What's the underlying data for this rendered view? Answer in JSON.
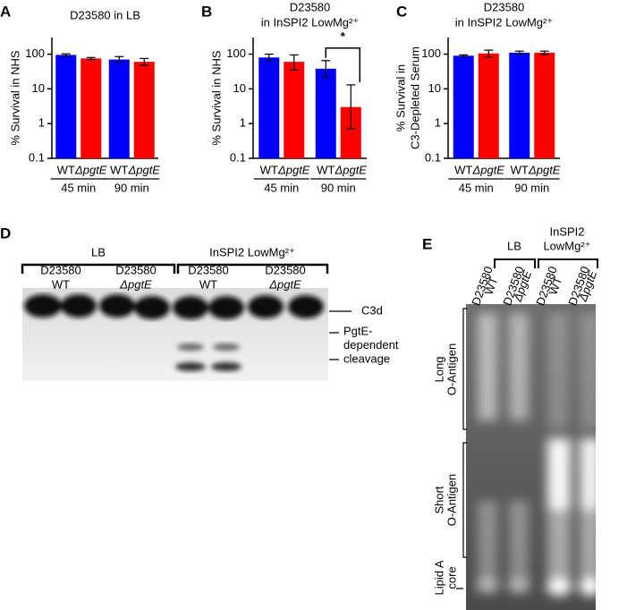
{
  "chart_data": [
    {
      "type": "bar",
      "panel_label": "A",
      "title": [
        "D23580 in LB"
      ],
      "y_label": [
        "% Survival in NHS"
      ],
      "log_y": true,
      "ylim": [
        0.1,
        300
      ],
      "yticks": [
        0.1,
        1,
        10,
        100
      ],
      "categories": [
        "45 min",
        "90 min"
      ],
      "series": [
        {
          "name": "WT",
          "color": "#0000ff",
          "values": [
            95,
            70
          ],
          "errors": [
            [
              88,
              102
            ],
            [
              58,
              85
            ]
          ]
        },
        {
          "name": "ΔpgtE",
          "color": "#ff0000",
          "values": [
            75,
            60
          ],
          "errors": [
            [
              70,
              80
            ],
            [
              48,
              75
            ]
          ]
        }
      ]
    },
    {
      "type": "bar",
      "panel_label": "B",
      "title": [
        "D23580",
        "in InSPI2 LowMg²⁺"
      ],
      "y_label": [
        "% Survival in NHS"
      ],
      "log_y": true,
      "ylim": [
        0.1,
        300
      ],
      "yticks": [
        0.1,
        1,
        10,
        100
      ],
      "categories": [
        "45 min",
        "90 min"
      ],
      "series": [
        {
          "name": "WT",
          "color": "#0000ff",
          "values": [
            80,
            38
          ],
          "errors": [
            [
              65,
              100
            ],
            [
              22,
              65
            ]
          ]
        },
        {
          "name": "ΔpgtE",
          "color": "#ff0000",
          "values": [
            60,
            3
          ],
          "errors": [
            [
              35,
              95
            ],
            [
              0.7,
              13
            ]
          ]
        }
      ],
      "annotation": "*"
    },
    {
      "type": "bar",
      "panel_label": "C",
      "title": [
        "D23580",
        "in InSPI2 LowMg²⁺"
      ],
      "y_label": [
        "% Survival in",
        "C3-Depleted Serum"
      ],
      "log_y": true,
      "ylim": [
        0.1,
        300
      ],
      "yticks": [
        0.1,
        1,
        10,
        100
      ],
      "categories": [
        "45 min",
        "90 min"
      ],
      "series": [
        {
          "name": "WT",
          "color": "#0000ff",
          "values": [
            90,
            110
          ],
          "errors": [
            [
              85,
              95
            ],
            [
              100,
              122
            ]
          ]
        },
        {
          "name": "ΔpgtE",
          "color": "#ff0000",
          "values": [
            105,
            110
          ],
          "errors": [
            [
              82,
              130
            ],
            [
              98,
              122
            ]
          ]
        }
      ]
    }
  ],
  "panel_d": {
    "label": "D",
    "groups": [
      {
        "label": "LB",
        "strains": [
          {
            "name": "D23580",
            "genotype": "WT"
          },
          {
            "name": "D23580",
            "genotype": "ΔpgtE"
          }
        ]
      },
      {
        "label": "InSPI2 LowMg²⁺",
        "strains": [
          {
            "name": "D23580",
            "genotype": "WT"
          },
          {
            "name": "D23580",
            "genotype": "ΔpgtE"
          }
        ]
      }
    ],
    "band_labels": {
      "c3d": "C3d",
      "cleavage": [
        "PgtE-",
        "dependent",
        "cleavage"
      ]
    }
  },
  "panel_e": {
    "label": "E",
    "groups": [
      {
        "label": [
          "LB"
        ],
        "lanes": [
          [
            "D23580",
            "WT"
          ],
          [
            "D23580",
            "ΔpgtE"
          ]
        ]
      },
      {
        "label": [
          "InSPI2",
          "LowMg²⁺"
        ],
        "lanes": [
          [
            "D23580",
            "WT"
          ],
          [
            "D23580",
            "ΔpgtE"
          ]
        ]
      }
    ],
    "regions": [
      [
        "Long",
        "O-Antigen"
      ],
      [
        "Short",
        "O-Antigen"
      ],
      [
        "Lipid A",
        "core"
      ]
    ]
  }
}
